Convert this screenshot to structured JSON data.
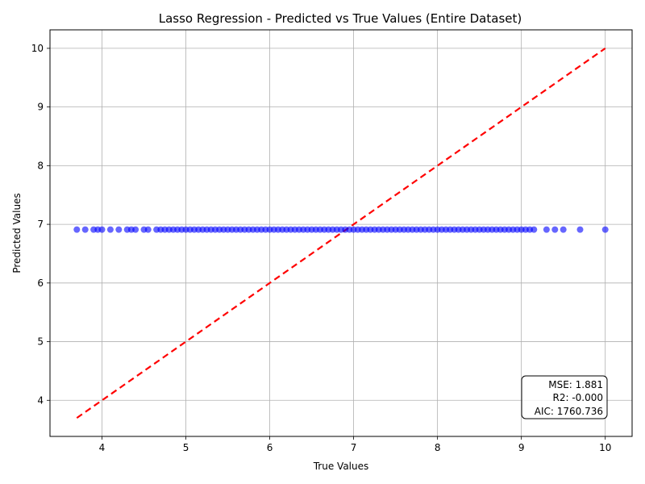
{
  "chart_data": {
    "type": "scatter",
    "title": "Lasso Regression - Predicted vs True Values (Entire Dataset)",
    "xlabel": "True Values",
    "ylabel": "Predicted Values",
    "xlim": [
      3.38,
      10.32
    ],
    "ylim": [
      3.385,
      10.315
    ],
    "xticks": [
      4,
      5,
      6,
      7,
      8,
      9,
      10
    ],
    "yticks": [
      4,
      5,
      6,
      7,
      8,
      9,
      10
    ],
    "grid": true,
    "point_color": "#0000ff",
    "reference_line": {
      "x": [
        3.7,
        10
      ],
      "y": [
        3.7,
        10
      ],
      "color": "#ff0000",
      "style": "dashed"
    },
    "points": {
      "y": 6.91,
      "x": [
        3.7,
        3.8,
        3.9,
        3.95,
        4.0,
        4.1,
        4.2,
        4.3,
        4.35,
        4.4,
        4.5,
        4.55,
        4.65,
        4.7,
        4.75,
        4.8,
        4.85,
        4.9,
        4.95,
        5.0,
        5.05,
        5.1,
        5.15,
        5.2,
        5.25,
        5.3,
        5.35,
        5.4,
        5.45,
        5.5,
        5.55,
        5.6,
        5.65,
        5.7,
        5.75,
        5.8,
        5.85,
        5.9,
        5.95,
        6.0,
        6.05,
        6.1,
        6.15,
        6.2,
        6.25,
        6.3,
        6.35,
        6.4,
        6.45,
        6.5,
        6.55,
        6.6,
        6.65,
        6.7,
        6.75,
        6.8,
        6.85,
        6.9,
        6.95,
        7.0,
        7.05,
        7.1,
        7.15,
        7.2,
        7.25,
        7.3,
        7.35,
        7.4,
        7.45,
        7.5,
        7.55,
        7.6,
        7.65,
        7.7,
        7.75,
        7.8,
        7.85,
        7.9,
        7.95,
        8.0,
        8.05,
        8.1,
        8.15,
        8.2,
        8.25,
        8.3,
        8.35,
        8.4,
        8.45,
        8.5,
        8.55,
        8.6,
        8.65,
        8.7,
        8.75,
        8.8,
        8.85,
        8.9,
        8.95,
        9.0,
        9.05,
        9.1,
        9.15,
        9.3,
        9.4,
        9.5,
        9.7,
        10.0
      ]
    },
    "annotation": [
      "MSE: 1.881",
      "R2: -0.000",
      "AIC: 1760.736"
    ]
  }
}
